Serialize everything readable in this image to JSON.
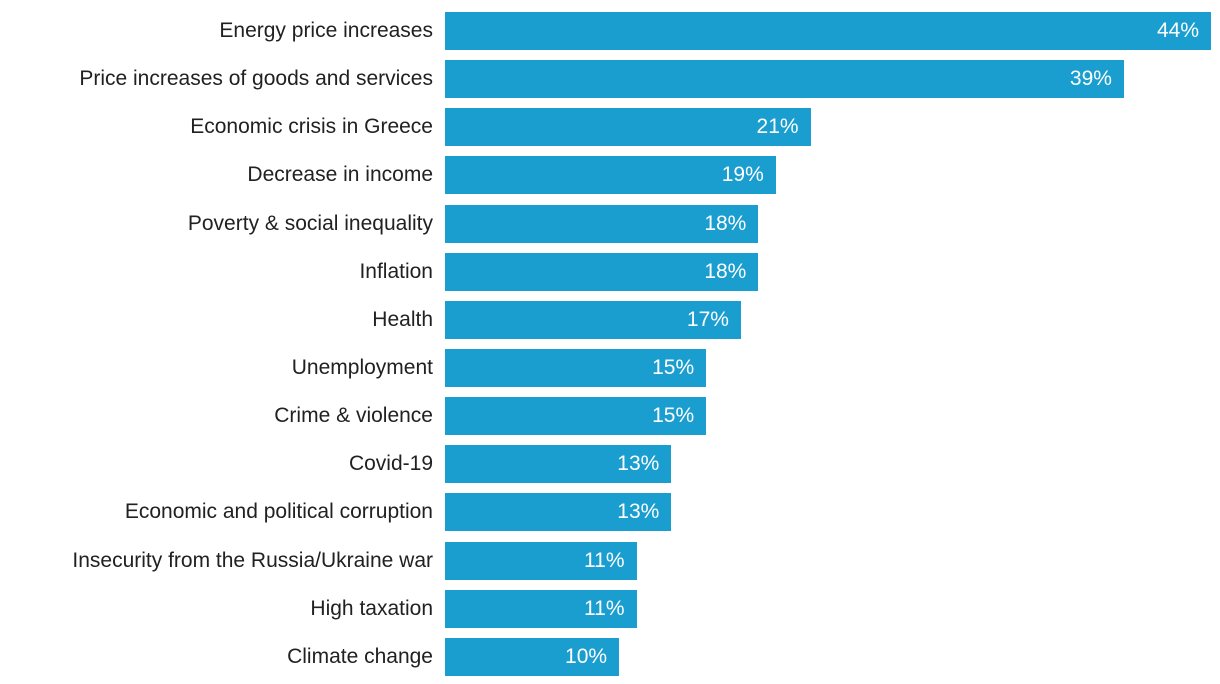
{
  "chart_data": {
    "type": "bar",
    "orientation": "horizontal",
    "title": "",
    "xlabel": "",
    "ylabel": "",
    "grid": false,
    "legend": false,
    "xlim": [
      0,
      44
    ],
    "bar_color": "#1A9ECF",
    "category_label_color": "#212121",
    "value_label_color": "#FFFFFF",
    "categories": [
      "Energy price increases",
      "Price increases of goods and services",
      "Economic crisis in Greece",
      "Decrease in income",
      "Poverty & social inequality",
      "Inflation",
      "Health",
      "Unemployment",
      "Crime & violence",
      "Covid-19",
      "Economic and political corruption",
      "Insecurity from the Russia/Ukraine war",
      "High taxation",
      "Climate change"
    ],
    "values": [
      44,
      39,
      21,
      19,
      18,
      18,
      17,
      15,
      15,
      13,
      13,
      11,
      11,
      10
    ],
    "value_labels": [
      "44%",
      "39%",
      "21%",
      "19%",
      "18%",
      "18%",
      "17%",
      "15%",
      "15%",
      "13%",
      "13%",
      "11%",
      "11%",
      "10%"
    ]
  }
}
